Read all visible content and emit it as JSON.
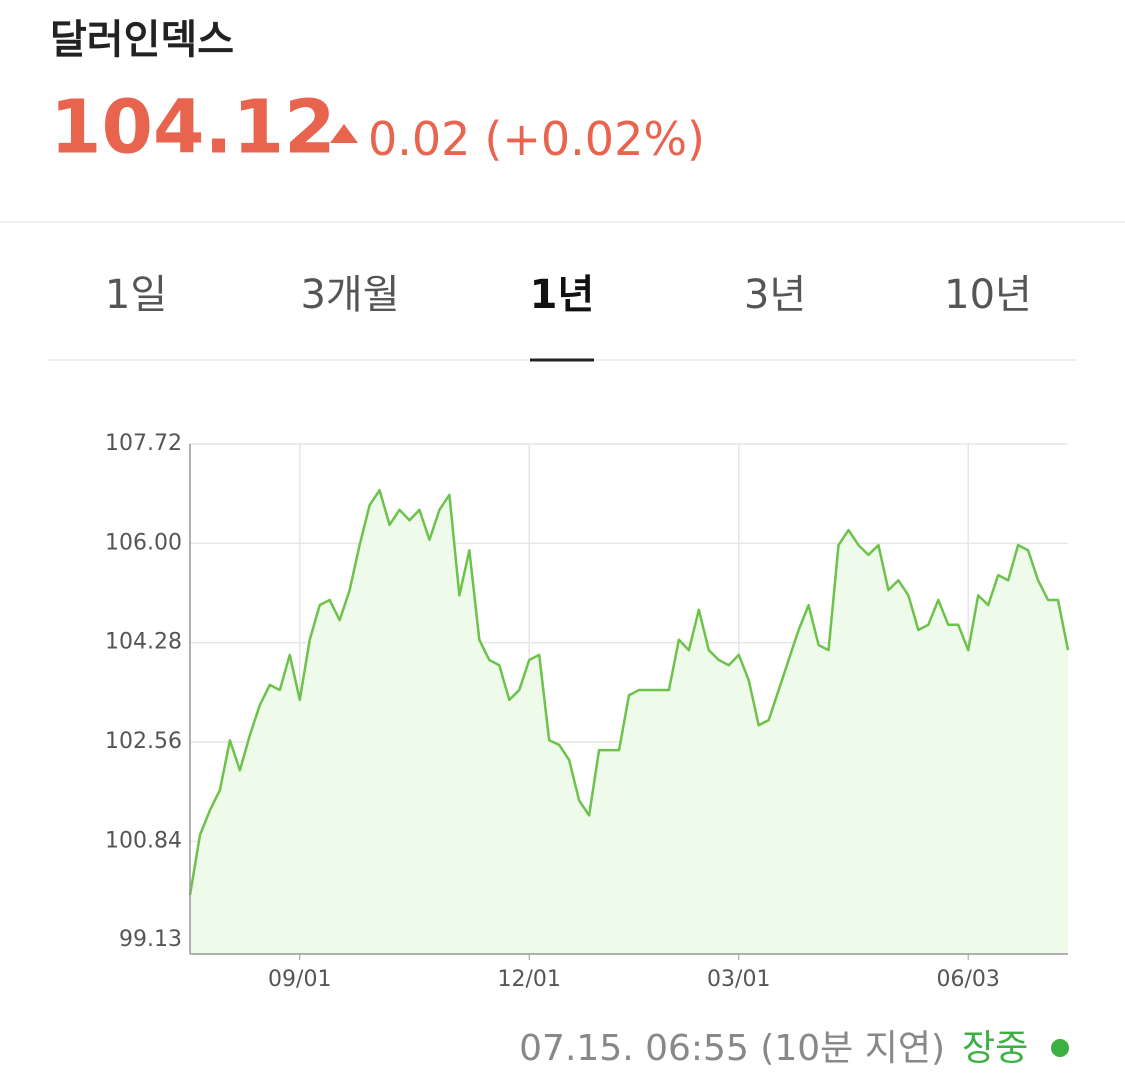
{
  "header": {
    "title": "달러인덱스",
    "price": "104.12",
    "change": "0.02",
    "change_pct": "(+0.02%)"
  },
  "tabs": [
    {
      "label": "1일",
      "selected": false
    },
    {
      "label": "3개월",
      "selected": false
    },
    {
      "label": "1년",
      "selected": true
    },
    {
      "label": "3년",
      "selected": false
    },
    {
      "label": "10년",
      "selected": false
    }
  ],
  "chart_data": {
    "type": "line",
    "color": "#6cc24a",
    "fill": "#effbea",
    "grid": true,
    "categories": [
      null,
      null,
      null,
      null,
      null,
      null,
      null,
      null,
      null,
      null,
      null,
      "09/01",
      null,
      null,
      null,
      null,
      null,
      null,
      null,
      null,
      null,
      null,
      null,
      null,
      null,
      null,
      null,
      null,
      null,
      null,
      null,
      null,
      null,
      null,
      "12/01",
      null,
      null,
      null,
      null,
      null,
      null,
      null,
      null,
      null,
      null,
      null,
      null,
      null,
      null,
      null,
      null,
      null,
      null,
      null,
      null,
      "03/01",
      null,
      null,
      null,
      null,
      null,
      null,
      null,
      null,
      null,
      null,
      null,
      null,
      null,
      null,
      null,
      null,
      null,
      null,
      null,
      null,
      null,
      null,
      "06/03",
      null,
      null,
      null,
      null,
      null,
      null,
      null,
      null,
      null,
      null
    ],
    "values": [
      99.91,
      100.95,
      101.38,
      101.73,
      102.59,
      102.07,
      102.68,
      103.2,
      103.55,
      103.46,
      104.07,
      103.29,
      104.33,
      104.93,
      105.02,
      104.67,
      105.19,
      105.97,
      106.66,
      106.92,
      106.32,
      106.58,
      106.4,
      106.58,
      106.06,
      106.58,
      106.84,
      105.1,
      105.88,
      104.33,
      103.98,
      103.89,
      103.29,
      103.46,
      103.98,
      104.07,
      102.59,
      102.51,
      102.25,
      101.55,
      101.29,
      102.42,
      102.42,
      102.42,
      103.37,
      103.46,
      103.46,
      103.46,
      103.46,
      104.33,
      104.15,
      104.85,
      104.15,
      103.98,
      103.89,
      104.07,
      103.63,
      102.85,
      102.94,
      103.46,
      103.98,
      104.5,
      104.93,
      104.24,
      104.15,
      105.97,
      106.23,
      105.97,
      105.8,
      105.97,
      105.19,
      105.36,
      105.1,
      104.5,
      104.59,
      105.02,
      104.59,
      104.59,
      104.15,
      105.1,
      104.93,
      105.45,
      105.36,
      105.97,
      105.88,
      105.36,
      105.02,
      105.02,
      104.15
    ],
    "ylim": [
      98.89,
      107.72
    ],
    "yticks": [
      {
        "value": 99.13,
        "label": "99.13"
      },
      100.84,
      102.56,
      104.28,
      {
        "value": 106,
        "label": "106.00"
      },
      107.72
    ]
  },
  "footer": {
    "timestamp": "07.15. 06:55 (10분 지연)",
    "status": "장중"
  }
}
